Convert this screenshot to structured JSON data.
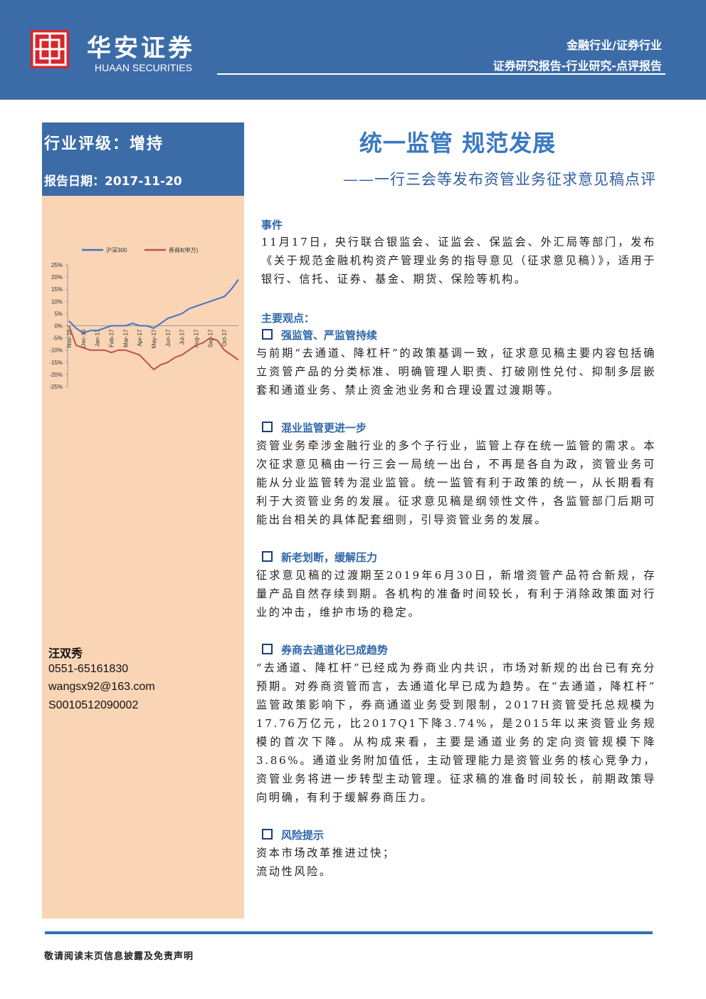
{
  "header": {
    "logo_cn": "华安证券",
    "logo_en": "HUAAN SECURITIES",
    "industry": "金融行业/证券行业",
    "report_type": "证券研究报告-行业研究-点评报告"
  },
  "sidebar": {
    "rating": "行业评级：增持",
    "date": "报告日期：2017-11-20",
    "author": {
      "name": "汪双秀",
      "phone": "0551-65161830",
      "email": "wangsx92@163.com",
      "cert": "S0010512090002"
    }
  },
  "chart_data": {
    "type": "line",
    "categories": [
      "Nov-16",
      null,
      "Dec-16",
      null,
      "Jan-17",
      null,
      "Feb-17",
      null,
      "Mar-17",
      null,
      "Apr-17",
      null,
      "May-17",
      null,
      "Jun-17",
      null,
      "Jul-17",
      null,
      "Aug-17",
      null,
      "Sep-17",
      null,
      "Oct-17",
      null,
      null
    ],
    "series": [
      {
        "name": "沪深300",
        "color": "#4472c4",
        "values": [
          2,
          -1,
          -3,
          -2,
          -2,
          -1,
          0,
          0,
          0,
          1,
          0,
          0,
          -1,
          1,
          3,
          4,
          5,
          7,
          8,
          9,
          10,
          11,
          12,
          15,
          19
        ]
      },
      {
        "name": "券商Ⅱ(申万)",
        "color": "#c0504d",
        "values": [
          0,
          -8,
          -9,
          -10,
          -10,
          -10,
          -11,
          -10,
          -10,
          -11,
          -12,
          -15,
          -18,
          -16,
          -15,
          -13,
          -12,
          -10,
          -8,
          -7,
          -5,
          -6,
          -10,
          -12,
          -14
        ]
      }
    ],
    "ylim": [
      -25,
      25
    ],
    "yticks": [
      {
        "value": 25,
        "label": "25%"
      },
      {
        "value": 20,
        "label": "20%"
      },
      {
        "value": 15,
        "label": "15%"
      },
      {
        "value": 10,
        "label": "10%"
      },
      {
        "value": 5,
        "label": "5%"
      },
      {
        "value": 0,
        "label": "0%"
      },
      {
        "value": -5,
        "label": "-5%"
      },
      {
        "value": -10,
        "label": "-10%"
      },
      {
        "value": -15,
        "label": "-15%"
      },
      {
        "value": -20,
        "label": "-20%"
      },
      {
        "value": -25,
        "label": "-25%"
      }
    ],
    "legend": "top"
  },
  "main": {
    "title": "统一监管 规范发展",
    "subtitle": "——一行三会等发布资管业务征求意见稿点评",
    "event": {
      "heading": "事件",
      "text": "11月17日，央行联合银监会、证监会、保监会、外汇局等部门，发布《关于规范金融机构资产管理业务的指导意见（征求意见稿）》，适用于银行、信托、证券、基金、期货、保险等机构。"
    },
    "points_heading": "主要观点：",
    "points": [
      {
        "title": "强监管、严监管持续",
        "paragraphs": [
          "与前期“去通道、降杠杆”的政策基调一致，征求意见稿主要内容包括确立资管产品的分类标准、明确管理人职责、打破刚性兑付、抑制多层嵌套和通道业务、禁止资金池业务和合理设置过渡期等。"
        ]
      },
      {
        "title": "混业监管更进一步",
        "paragraphs": [
          "资管业务牵涉金融行业的多个子行业，监管上存在统一监管的需求。本次征求意见稿由一行三会一局统一出台，不再是各自为政，资管业务可能从分业监管转为混业监管。统一监管有利于政策的统一，从长期看有利于大资管业务的发展。征求意见稿是纲领性文件，各监管部门后期可能出台相关的具体配套细则，引导资管业务的发展。"
        ]
      },
      {
        "title": "新老划断，缓解压力",
        "paragraphs": [
          "征求意见稿的过渡期至2019年6月30日，新增资管产品符合新规，存量产品自然存续到期。各机构的准备时间较长，有利于消除政策面对行业的冲击，维护市场的稳定。"
        ]
      },
      {
        "title": "券商去通道化已成趋势",
        "paragraphs": [
          "“去通道、降杠杆”已经成为券商业内共识，市场对新规的出台已有充分预期。对券商资管而言，去通道化早已成为趋势。在“去通道，降杠杆”监管政策影响下，券商通道业务受到限制，2017H资管受托总规模为17.76万亿元，比2017Q1下降3.74%，是2015年以来资管业务规模的首次下降。从构成来看，主要是通道业务的定向资管规模下降3.86%。通道业务附加值低，主动管理能力是资管业务的核心竞争力，资管业务将进一步转型主动管理。征求稿的准备时间较长，前期政策导向明确，有利于缓解券商压力。"
        ]
      },
      {
        "title": "风险提示",
        "paragraphs": [
          "资本市场改革推进过快；",
          "流动性风险。"
        ]
      }
    ]
  },
  "footer": {
    "disclaimer": "敬请阅读末页信息披露及免责声明"
  }
}
